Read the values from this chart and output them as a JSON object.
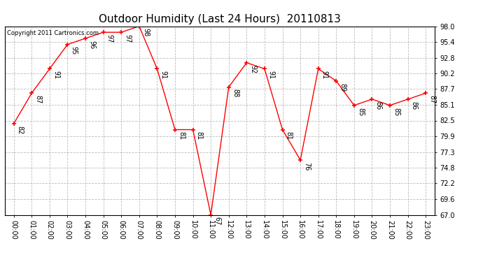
{
  "title": "Outdoor Humidity (Last 24 Hours)  20110813",
  "copyright": "Copyright 2011 Cartronics.com",
  "x_labels": [
    "00:00",
    "01:00",
    "02:00",
    "03:00",
    "04:00",
    "05:00",
    "06:00",
    "07:00",
    "08:00",
    "09:00",
    "10:00",
    "11:00",
    "12:00",
    "13:00",
    "14:00",
    "15:00",
    "16:00",
    "17:00",
    "18:00",
    "19:00",
    "20:00",
    "21:00",
    "22:00",
    "23:00"
  ],
  "x_values": [
    0,
    1,
    2,
    3,
    4,
    5,
    6,
    7,
    8,
    9,
    10,
    11,
    12,
    13,
    14,
    15,
    16,
    17,
    18,
    19,
    20,
    21,
    22,
    23
  ],
  "y_values": [
    82,
    87,
    91,
    95,
    96,
    97,
    97,
    98,
    91,
    81,
    81,
    67,
    88,
    92,
    91,
    81,
    76,
    91,
    89,
    85,
    86,
    85,
    86,
    87
  ],
  "y_min": 67.0,
  "y_max": 98.0,
  "y_ticks": [
    67.0,
    69.6,
    72.2,
    74.8,
    77.3,
    79.9,
    82.5,
    85.1,
    87.7,
    90.2,
    92.8,
    95.4,
    98.0
  ],
  "line_color": "red",
  "bg_color": "#ffffff",
  "grid_color": "#bbbbbb",
  "title_fontsize": 11,
  "label_fontsize": 7,
  "annot_fontsize": 7,
  "annot_rotation": 270
}
